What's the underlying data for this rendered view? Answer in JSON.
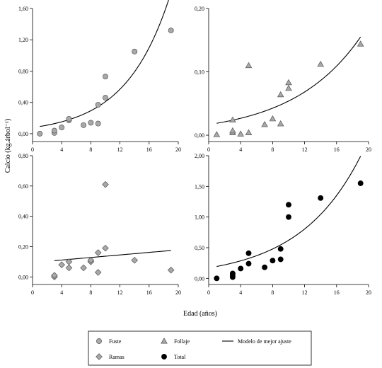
{
  "chart_data": {
    "type": "scatter",
    "ylabel": "Calcio (kg.árbol⁻¹)",
    "xlabel": "Edad (años)",
    "panels": [
      {
        "name": "Fuste",
        "marker": "circle",
        "color": "#a8a8a8",
        "xlim": [
          0,
          20
        ],
        "ylim": [
          -0.1,
          1.6
        ],
        "xticks": [
          0,
          4,
          8,
          12,
          16,
          20
        ],
        "xtick_labels": [
          "0",
          "4",
          "8",
          "12",
          "16",
          "20"
        ],
        "yticks": [
          0,
          0.4,
          0.8,
          1.2,
          1.6
        ],
        "ytick_labels": [
          "0,00",
          "0,40",
          "0,80",
          "1,20",
          "1,60"
        ],
        "points": [
          [
            1,
            0.0
          ],
          [
            3,
            0.01
          ],
          [
            3,
            0.04
          ],
          [
            4,
            0.08
          ],
          [
            5,
            0.17
          ],
          [
            5,
            0.19
          ],
          [
            7,
            0.11
          ],
          [
            8,
            0.14
          ],
          [
            9,
            0.13
          ],
          [
            9,
            0.37
          ],
          [
            10,
            0.46
          ],
          [
            10,
            0.73
          ],
          [
            14,
            1.05
          ],
          [
            19,
            1.32
          ]
        ],
        "fit": {
          "type": "exp",
          "a": 0.0786,
          "b": 0.1649,
          "x0": 1,
          "x1": 19
        }
      },
      {
        "name": "Follaje",
        "marker": "triangle",
        "color": "#a8a8a8",
        "xlim": [
          0,
          20
        ],
        "ylim": [
          -0.01,
          0.2
        ],
        "xticks": [
          0,
          4,
          8,
          12,
          16,
          20
        ],
        "xtick_labels": [
          "0",
          "4",
          "8",
          "12",
          "16",
          "20"
        ],
        "yticks": [
          0,
          0.1,
          0.2
        ],
        "ytick_labels": [
          "0,00",
          "0,10",
          "0,20"
        ],
        "points": [
          [
            1,
            0.001
          ],
          [
            3,
            0.004
          ],
          [
            3,
            0.007
          ],
          [
            3,
            0.024
          ],
          [
            4,
            0.002
          ],
          [
            5,
            0.004
          ],
          [
            5,
            0.11
          ],
          [
            7,
            0.017
          ],
          [
            8,
            0.026
          ],
          [
            9,
            0.018
          ],
          [
            9,
            0.064
          ],
          [
            10,
            0.074
          ],
          [
            10,
            0.083
          ],
          [
            14,
            0.112
          ],
          [
            19,
            0.144
          ]
        ],
        "fit": {
          "type": "exp",
          "a": 0.0167,
          "b": 0.1173,
          "x0": 1,
          "x1": 19
        }
      },
      {
        "name": "Ramas",
        "marker": "diamond",
        "color": "#a8a8a8",
        "xlim": [
          0,
          20
        ],
        "ylim": [
          -0.05,
          0.8
        ],
        "xticks": [
          0,
          4,
          8,
          12,
          16,
          20
        ],
        "xtick_labels": [
          "0",
          "4",
          "8",
          "12",
          "16",
          "20"
        ],
        "yticks": [
          0,
          0.2,
          0.4,
          0.6,
          0.8
        ],
        "ytick_labels": [
          "0,00",
          "0,20",
          "0,40",
          "0,60",
          "0,80"
        ],
        "points": [
          [
            3,
            0.0
          ],
          [
            3,
            0.01
          ],
          [
            4,
            0.08
          ],
          [
            5,
            0.06
          ],
          [
            5,
            0.1
          ],
          [
            7,
            0.06
          ],
          [
            8,
            0.1
          ],
          [
            8,
            0.11
          ],
          [
            9,
            0.16
          ],
          [
            9,
            0.03
          ],
          [
            10,
            0.19
          ],
          [
            10,
            0.61
          ],
          [
            14,
            0.11
          ],
          [
            19,
            0.045
          ]
        ],
        "fit": {
          "type": "linear",
          "a": 0.0946,
          "b": 0.0042,
          "x0": 3,
          "x1": 19
        }
      },
      {
        "name": "Total",
        "marker": "circle",
        "color": "#000000",
        "xlim": [
          0,
          20
        ],
        "ylim": [
          -0.1,
          2.0
        ],
        "xticks": [
          0,
          4,
          8,
          12,
          16,
          20
        ],
        "xtick_labels": [
          "0",
          "4",
          "8",
          "12",
          "16",
          "20"
        ],
        "yticks": [
          0,
          0.5,
          1.0,
          1.5,
          2.0
        ],
        "ytick_labels": [
          "0,00",
          "0,50",
          "1,00",
          "1,50",
          "2,00"
        ],
        "points": [
          [
            1,
            0.0
          ],
          [
            3,
            0.02
          ],
          [
            3,
            0.05
          ],
          [
            3,
            0.08
          ],
          [
            4,
            0.16
          ],
          [
            5,
            0.24
          ],
          [
            5,
            0.41
          ],
          [
            7,
            0.18
          ],
          [
            8,
            0.29
          ],
          [
            9,
            0.31
          ],
          [
            9,
            0.48
          ],
          [
            10,
            1.0
          ],
          [
            10,
            1.2
          ],
          [
            14,
            1.31
          ],
          [
            19,
            1.55
          ]
        ],
        "fit": {
          "type": "exp",
          "a": 0.1701,
          "b": 0.1295,
          "x0": 1,
          "x1": 19
        }
      }
    ],
    "legend": {
      "position": "bottom",
      "entries": [
        {
          "label": "Fuste",
          "marker": "circle",
          "color": "#a8a8a8"
        },
        {
          "label": "Follaje",
          "marker": "triangle",
          "color": "#a8a8a8"
        },
        {
          "label": "Modelo de mejor ajuste",
          "marker": "line",
          "color": "#000000"
        },
        {
          "label": "Ramas",
          "marker": "diamond",
          "color": "#a8a8a8"
        },
        {
          "label": "Total",
          "marker": "circle",
          "color": "#000000"
        }
      ]
    }
  }
}
